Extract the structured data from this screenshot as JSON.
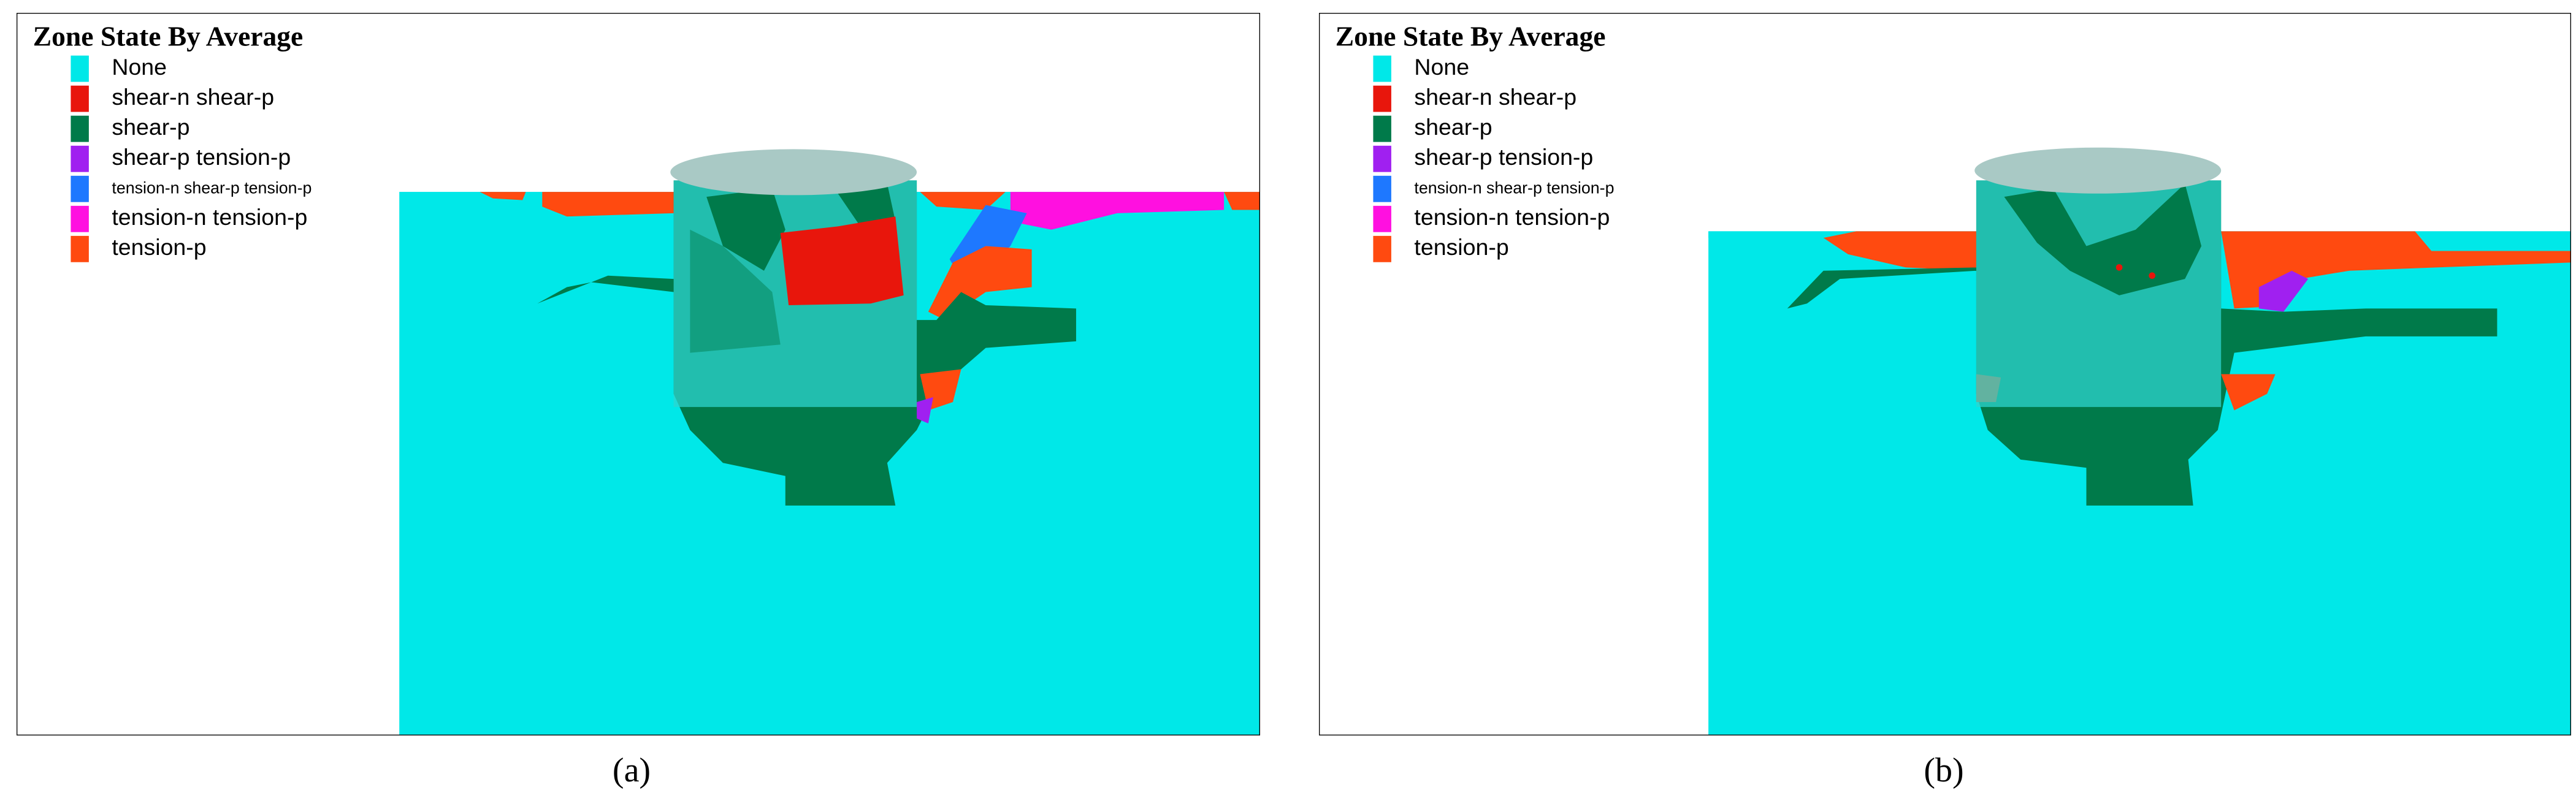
{
  "panels": [
    {
      "title": "Zone State By Average",
      "legend": [
        {
          "label": "None",
          "color": "#00e8e8"
        },
        {
          "label": "shear-n shear-p",
          "color": "#e8160c"
        },
        {
          "label": "shear-p",
          "color": "#007a4a"
        },
        {
          "label": "shear-p tension-p",
          "color": "#a020f0"
        },
        {
          "label": "tension-n shear-p tension-p",
          "color": "#1e78ff"
        },
        {
          "label": "tension-n tension-p",
          "color": "#ff10e0"
        },
        {
          "label": "tension-p",
          "color": "#ff4a10"
        }
      ],
      "caption": "(a)"
    },
    {
      "title": "Zone State By Average",
      "legend": [
        {
          "label": "None",
          "color": "#00e8e8"
        },
        {
          "label": "shear-n shear-p",
          "color": "#e8160c"
        },
        {
          "label": "shear-p",
          "color": "#007a4a"
        },
        {
          "label": "shear-p tension-p",
          "color": "#a020f0"
        },
        {
          "label": "tension-n shear-p tension-p",
          "color": "#1e78ff"
        },
        {
          "label": "tension-n tension-p",
          "color": "#ff10e0"
        },
        {
          "label": "tension-p",
          "color": "#ff4a10"
        }
      ],
      "caption": "(b)"
    }
  ]
}
